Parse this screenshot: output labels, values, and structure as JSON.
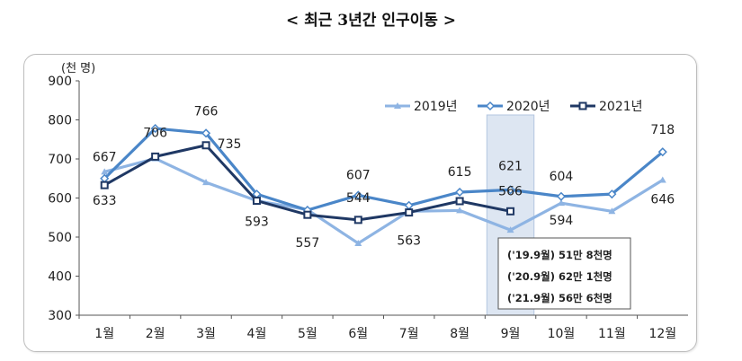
{
  "title": "< 최근 3년간 인구이동 >",
  "chart_data": {
    "type": "line",
    "title": "< 최근 3년간 인구이동 >",
    "unit_label": "(천 명)",
    "categories": [
      "1월",
      "2월",
      "3월",
      "4월",
      "5월",
      "6월",
      "7월",
      "8월",
      "9월",
      "10월",
      "11월",
      "12월"
    ],
    "ylim": [
      300,
      900
    ],
    "yticks": [
      "300",
      "400",
      "500",
      "600",
      "700",
      "800",
      "900"
    ],
    "grid": false,
    "legend_position": "top-right",
    "highlight_category": "9월",
    "series": [
      {
        "name": "2019년",
        "color": "#8eb4e3",
        "marker": "triangle",
        "values": [
          667,
          701,
          640,
          593,
          570,
          484,
          566,
          568,
          518,
          587,
          566,
          646
        ],
        "labels": [
          "",
          "",
          "",
          "",
          "",
          "",
          "",
          "",
          "",
          "",
          "",
          "646"
        ]
      },
      {
        "name": "2020년",
        "color": "#4a86c8",
        "marker": "diamond",
        "values": [
          650,
          778,
          766,
          610,
          569,
          607,
          581,
          615,
          621,
          604,
          610,
          718
        ],
        "labels": [
          "",
          "",
          "766",
          "",
          "",
          "607",
          "",
          "615",
          "621",
          "604",
          "",
          "718"
        ]
      },
      {
        "name": "2021년",
        "color": "#1f3864",
        "marker": "square",
        "values": [
          633,
          706,
          735,
          593,
          557,
          544,
          563,
          592,
          566,
          null,
          null,
          null
        ],
        "labels": [
          "667 / 633",
          "706",
          "735",
          "593",
          "557",
          "544",
          "563",
          "",
          "566",
          "",
          "",
          ""
        ]
      }
    ],
    "annotations": [
      "('19.9월) 51만 8천명",
      "('20.9월) 62만 1천명",
      "('21.9월) 56만 6천명"
    ],
    "extra_labels": [
      "667",
      "594"
    ]
  }
}
